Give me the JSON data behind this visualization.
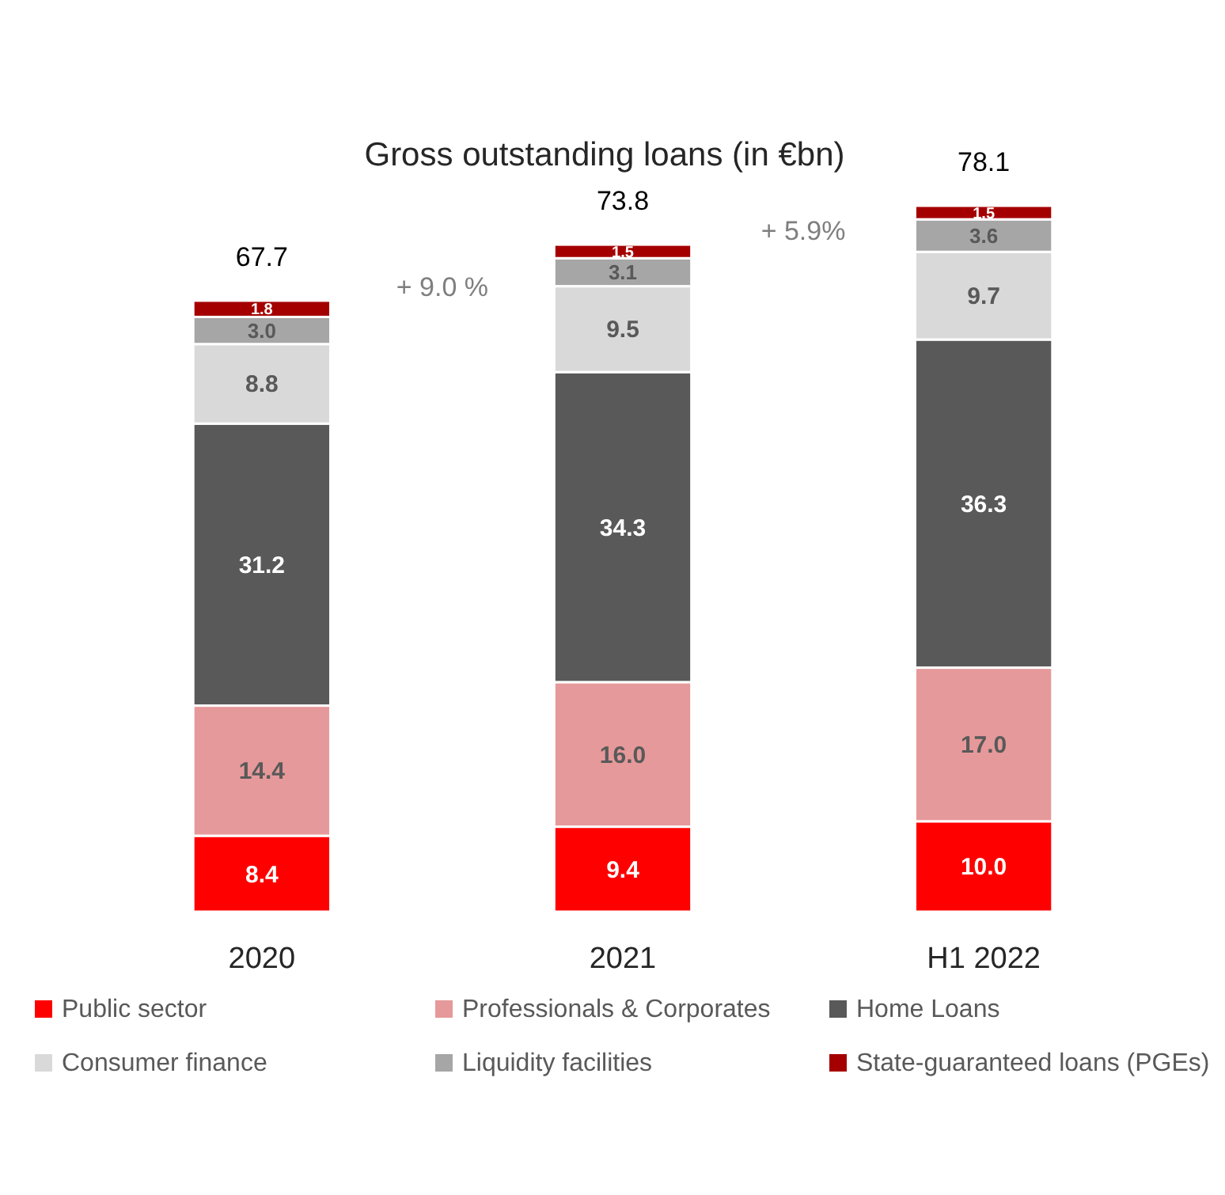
{
  "chart_data": {
    "type": "bar",
    "stacked": true,
    "title": "Gross outstanding loans (in €bn)",
    "categories": [
      "2020",
      "2021",
      "H1 2022"
    ],
    "series": [
      {
        "name": "Public sector",
        "color": "#ff0000",
        "values": [
          8.4,
          9.4,
          10.0
        ],
        "value_labels": [
          "8.4",
          "9.4",
          "10.0"
        ]
      },
      {
        "name": "Professionals & Corporates",
        "color": "#e6999a",
        "values": [
          14.4,
          16.0,
          17.0
        ],
        "value_labels": [
          "14.4",
          "16.0",
          "17.0"
        ]
      },
      {
        "name": "Home Loans",
        "color": "#595959",
        "values": [
          31.2,
          34.3,
          36.3
        ],
        "value_labels": [
          "31.2",
          "34.3",
          "36.3"
        ]
      },
      {
        "name": "Consumer finance",
        "color": "#d9d9d9",
        "values": [
          8.8,
          9.5,
          9.7
        ],
        "value_labels": [
          "8.8",
          "9.5",
          "9.7"
        ]
      },
      {
        "name": "Liquidity facilities",
        "color": "#a6a6a6",
        "values": [
          3.0,
          3.1,
          3.6
        ],
        "value_labels": [
          "3.0",
          "3.1",
          "3.6"
        ]
      },
      {
        "name": "State-guaranteed loans (PGEs)",
        "color": "#a50000",
        "values": [
          1.8,
          1.5,
          1.5
        ],
        "value_labels": [
          "1.8",
          "1.5",
          "1.5"
        ]
      }
    ],
    "totals": [
      "67.7",
      "73.8",
      "78.1"
    ],
    "annotations": [
      "+ 9.0 %",
      "+ 5.9%"
    ],
    "legend": "bottom"
  }
}
